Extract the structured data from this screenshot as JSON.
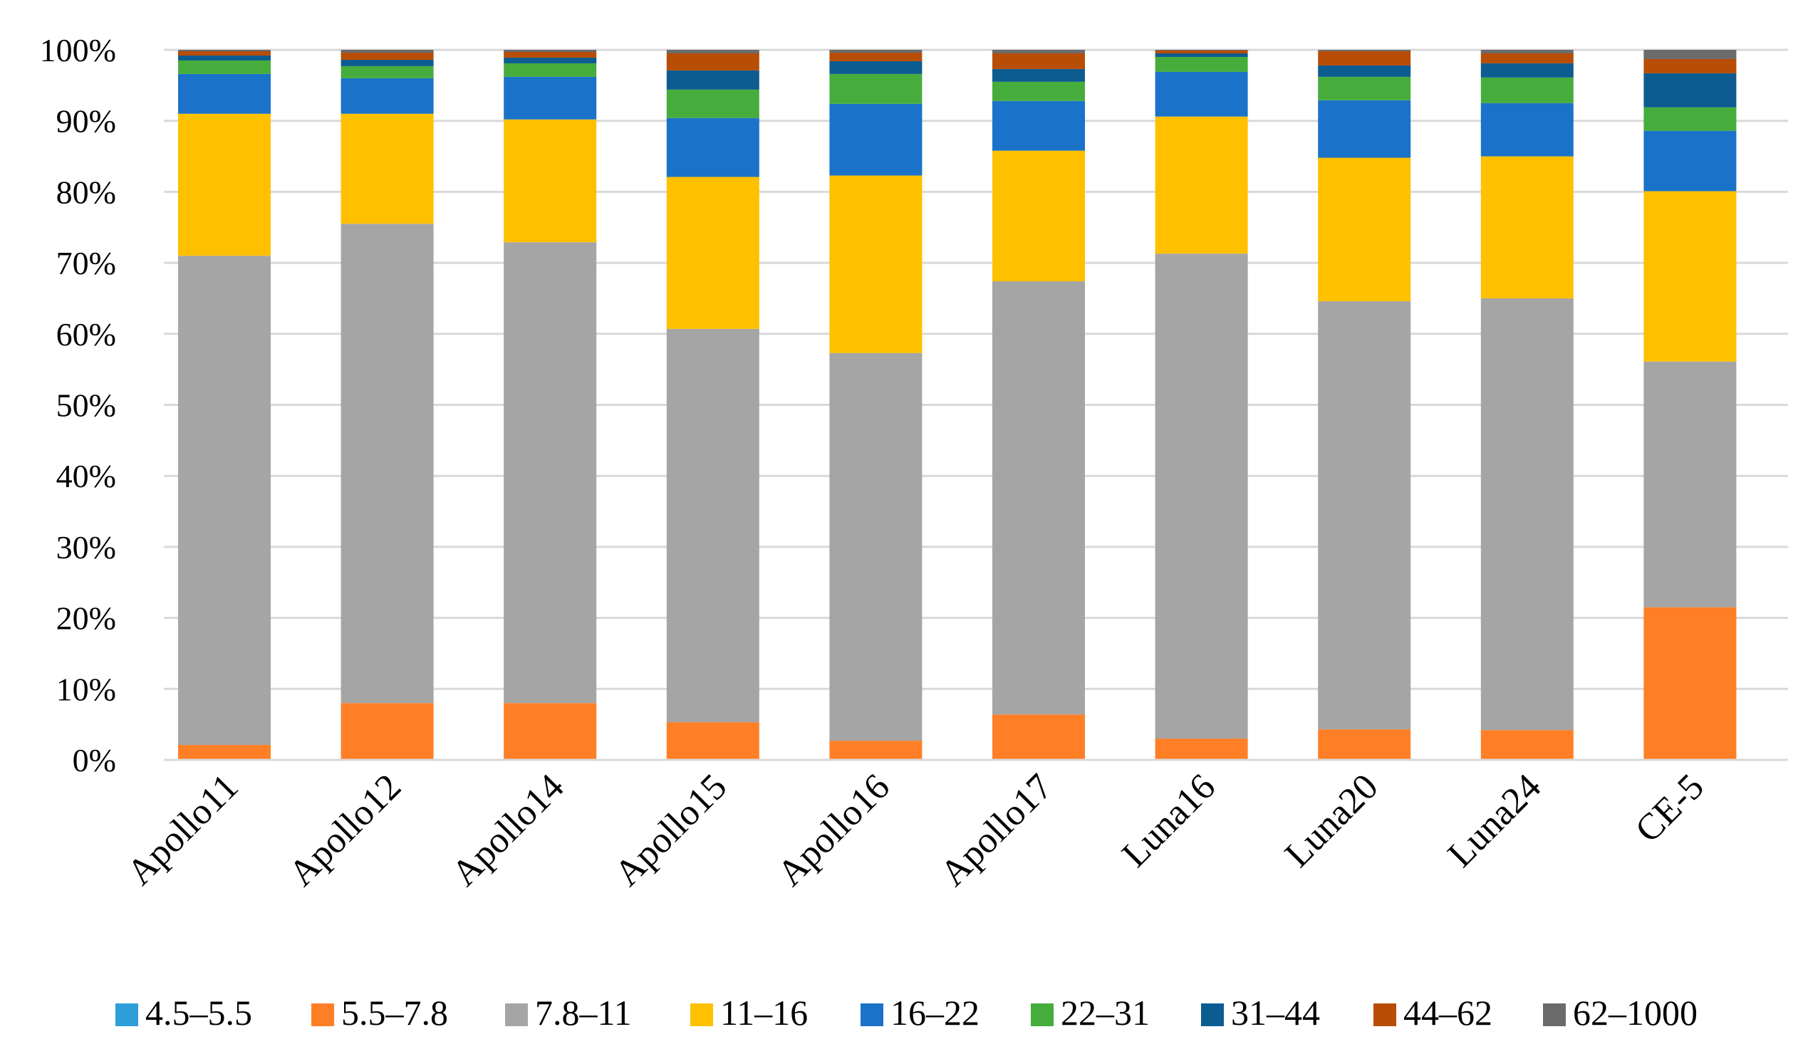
{
  "chart_data": {
    "type": "bar",
    "stacked": true,
    "normalized": true,
    "title": "",
    "xlabel": "",
    "ylabel": "",
    "ylim": [
      0,
      100
    ],
    "y_ticks": [
      "0%",
      "10%",
      "20%",
      "30%",
      "40%",
      "50%",
      "60%",
      "70%",
      "80%",
      "90%",
      "100%"
    ],
    "grid": true,
    "legend_position": "bottom",
    "categories": [
      "Apollo11",
      "Apollo12",
      "Apollo14",
      "Apollo15",
      "Apollo16",
      "Apollo17",
      "Luna16",
      "Luna20",
      "Luna24",
      "CE-5"
    ],
    "series": [
      {
        "name": "4.5–5.5",
        "color": "#2e9fd9",
        "values": [
          0.1,
          0.1,
          0.1,
          0.1,
          0.1,
          0.1,
          0.1,
          0.1,
          0.1,
          0.1
        ]
      },
      {
        "name": "5.5–7.8",
        "color": "#ff7f27",
        "values": [
          2.0,
          7.9,
          7.9,
          5.2,
          2.6,
          6.3,
          2.9,
          4.2,
          4.1,
          21.4
        ]
      },
      {
        "name": "7.8–11",
        "color": "#a5a5a5",
        "values": [
          68.9,
          67.5,
          64.9,
          55.4,
          54.6,
          61.0,
          68.3,
          60.3,
          60.8,
          34.6
        ]
      },
      {
        "name": "11–16",
        "color": "#ffc000",
        "values": [
          20.0,
          15.5,
          17.3,
          21.4,
          25.0,
          18.4,
          19.3,
          20.2,
          20.0,
          24.0
        ]
      },
      {
        "name": "16–22",
        "color": "#1a73c8",
        "values": [
          5.6,
          5.0,
          6.0,
          8.3,
          10.1,
          7.0,
          6.3,
          8.1,
          7.5,
          8.5
        ]
      },
      {
        "name": "22–31",
        "color": "#46ad3d",
        "values": [
          1.9,
          1.7,
          1.9,
          4.0,
          4.2,
          2.7,
          2.1,
          3.3,
          3.6,
          3.3
        ]
      },
      {
        "name": "31–44",
        "color": "#0d5c91",
        "values": [
          0.7,
          0.9,
          0.8,
          2.7,
          1.8,
          1.8,
          0.5,
          1.6,
          2.0,
          4.8
        ]
      },
      {
        "name": "44–62",
        "color": "#b84d06",
        "values": [
          0.6,
          1.0,
          0.8,
          2.4,
          1.2,
          2.2,
          0.4,
          2.0,
          1.4,
          2.0
        ]
      },
      {
        "name": "62–1000",
        "color": "#6b6b6b",
        "values": [
          0.2,
          0.4,
          0.3,
          0.5,
          0.4,
          0.5,
          0.1,
          0.2,
          0.5,
          1.3
        ]
      }
    ]
  }
}
